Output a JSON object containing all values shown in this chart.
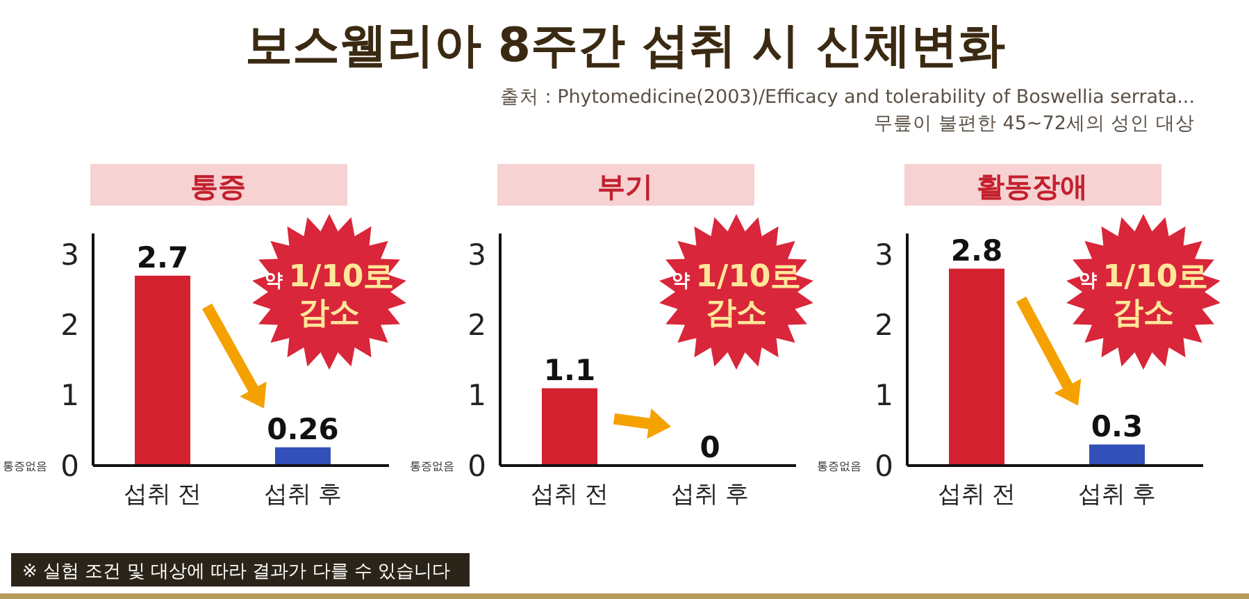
{
  "chart_data": [
    {
      "type": "other",
      "title": "보스웰리아 8주간 섭취 시 신체변화",
      "annotations": [
        "출처 : Phytomedicine(2003)/Efficacy and tolerability of Boswellia serrata...",
        "무릎이 불편한 45~72세의 성인 대상",
        "※ 실험 조건 및 대상에 따라 결과가 다를 수 있습니다"
      ]
    },
    {
      "type": "bar",
      "title": "통증",
      "categories": [
        "섭취 전",
        "섭취 후"
      ],
      "values": [
        2.7,
        0.26
      ],
      "colors": [
        "#d42130",
        "#3350b8"
      ],
      "ylim": [
        0,
        3.3
      ],
      "yticks": [
        0,
        1,
        2,
        3
      ],
      "data_labels": true,
      "annotations": [
        "통증없음",
        "약 1/10로 감소"
      ]
    },
    {
      "type": "bar",
      "title": "부기",
      "categories": [
        "섭취 전",
        "섭취 후"
      ],
      "values": [
        1.1,
        0
      ],
      "colors": [
        "#d42130",
        "#3350b8"
      ],
      "ylim": [
        0,
        3.3
      ],
      "yticks": [
        0,
        1,
        2,
        3
      ],
      "data_labels": true,
      "annotations": [
        "통증없음",
        "약 1/10로 감소"
      ]
    },
    {
      "type": "bar",
      "title": "활동장애",
      "categories": [
        "섭취 전",
        "섭취 후"
      ],
      "values": [
        2.8,
        0.3
      ],
      "colors": [
        "#d42130",
        "#3350b8"
      ],
      "ylim": [
        0,
        3.3
      ],
      "yticks": [
        0,
        1,
        2,
        3
      ],
      "data_labels": true,
      "annotations": [
        "통증없음",
        "약 1/10로 감소"
      ]
    }
  ]
}
